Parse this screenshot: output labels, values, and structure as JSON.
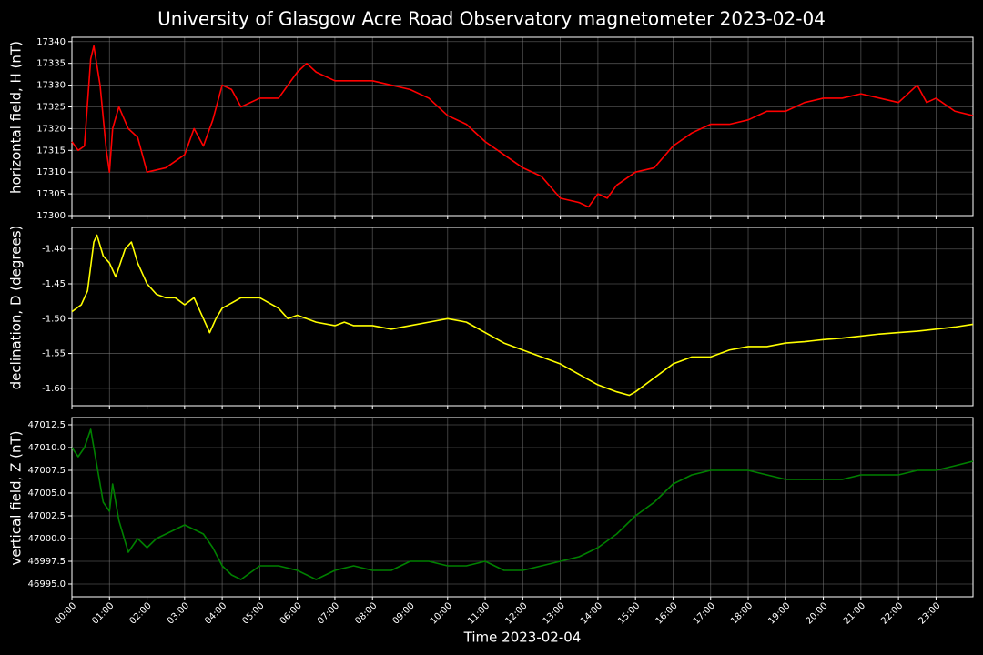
{
  "title": "University of Glasgow Acre Road Observatory magnetometer 2023-02-04",
  "chart_data": [
    {
      "type": "line",
      "ylabel": "horizontal field, H (nT)",
      "grid": true,
      "xlim": [
        "00:00",
        "23:59"
      ],
      "ylim": [
        17300,
        17341
      ],
      "yticks": [
        17300,
        17305,
        17310,
        17315,
        17320,
        17325,
        17330,
        17335,
        17340
      ],
      "x": [
        "00:00",
        "00:10",
        "00:20",
        "00:30",
        "00:35",
        "00:45",
        "00:55",
        "01:00",
        "01:05",
        "01:15",
        "01:30",
        "01:45",
        "02:00",
        "02:30",
        "03:00",
        "03:15",
        "03:30",
        "03:45",
        "04:00",
        "04:15",
        "04:30",
        "05:00",
        "05:30",
        "06:00",
        "06:15",
        "06:30",
        "07:00",
        "07:30",
        "08:00",
        "08:30",
        "09:00",
        "09:30",
        "10:00",
        "10:30",
        "11:00",
        "11:30",
        "12:00",
        "12:30",
        "13:00",
        "13:30",
        "13:45",
        "14:00",
        "14:15",
        "14:30",
        "15:00",
        "15:30",
        "16:00",
        "16:30",
        "17:00",
        "17:30",
        "18:00",
        "18:30",
        "19:00",
        "19:30",
        "20:00",
        "20:30",
        "21:00",
        "21:30",
        "22:00",
        "22:30",
        "22:45",
        "23:00",
        "23:30",
        "23:59"
      ],
      "series": [
        {
          "color": "#ff0000",
          "values": [
            17317,
            17315,
            17316,
            17336,
            17339,
            17330,
            17315,
            17310,
            17320,
            17325,
            17320,
            17318,
            17310,
            17311,
            17314,
            17320,
            17316,
            17322,
            17330,
            17329,
            17325,
            17327,
            17327,
            17333,
            17335,
            17333,
            17331,
            17331,
            17331,
            17330,
            17329,
            17327,
            17323,
            17321,
            17317,
            17314,
            17311,
            17309,
            17304,
            17303,
            17302,
            17305,
            17304,
            17307,
            17310,
            17311,
            17316,
            17319,
            17321,
            17321,
            17322,
            17324,
            17324,
            17326,
            17327,
            17327,
            17328,
            17327,
            17326,
            17330,
            17326,
            17327,
            17324,
            17323
          ]
        }
      ]
    },
    {
      "type": "line",
      "ylabel": "declination, D (degrees)",
      "grid": true,
      "xlim": [
        "00:00",
        "23:59"
      ],
      "ylim": [
        -1.625,
        -1.369
      ],
      "yticks": [
        {
          "value": -1.6,
          "label": "-1.60"
        },
        -1.55,
        {
          "value": -1.5,
          "label": "-1.50"
        },
        -1.45,
        {
          "value": -1.4,
          "label": "-1.40"
        }
      ],
      "x": [
        "00:00",
        "00:15",
        "00:25",
        "00:35",
        "00:40",
        "00:50",
        "01:00",
        "01:10",
        "01:25",
        "01:35",
        "01:45",
        "02:00",
        "02:15",
        "02:30",
        "02:45",
        "03:00",
        "03:15",
        "03:30",
        "03:40",
        "03:50",
        "04:00",
        "04:30",
        "05:00",
        "05:30",
        "05:45",
        "06:00",
        "06:30",
        "07:00",
        "07:15",
        "07:30",
        "08:00",
        "08:30",
        "09:00",
        "09:30",
        "10:00",
        "10:30",
        "11:00",
        "11:30",
        "12:00",
        "12:30",
        "13:00",
        "13:30",
        "14:00",
        "14:30",
        "14:50",
        "15:00",
        "15:30",
        "16:00",
        "16:30",
        "17:00",
        "17:30",
        "18:00",
        "18:30",
        "19:00",
        "19:30",
        "20:00",
        "20:30",
        "21:00",
        "21:30",
        "22:00",
        "22:30",
        "23:00",
        "23:30",
        "23:59"
      ],
      "series": [
        {
          "color": "#ffff00",
          "values": [
            -1.49,
            -1.48,
            -1.46,
            -1.39,
            -1.38,
            -1.41,
            -1.42,
            -1.44,
            -1.4,
            -1.39,
            -1.42,
            -1.45,
            -1.465,
            -1.47,
            -1.47,
            -1.48,
            -1.47,
            -1.5,
            -1.52,
            -1.5,
            -1.485,
            -1.47,
            -1.47,
            -1.485,
            -1.5,
            -1.495,
            -1.505,
            -1.51,
            -1.505,
            -1.51,
            -1.51,
            -1.515,
            -1.51,
            -1.505,
            -1.5,
            -1.505,
            -1.52,
            -1.535,
            -1.545,
            -1.555,
            -1.565,
            -1.58,
            -1.595,
            -1.605,
            -1.61,
            -1.605,
            -1.585,
            -1.565,
            -1.555,
            -1.555,
            -1.545,
            -1.54,
            -1.54,
            -1.535,
            -1.533,
            -1.53,
            -1.528,
            -1.525,
            -1.522,
            -1.52,
            -1.518,
            -1.515,
            -1.512,
            -1.508
          ]
        }
      ]
    },
    {
      "type": "line",
      "ylabel": "vertical field, Z (nT)",
      "xlabel": "Time 2023-02-04",
      "grid": true,
      "xlim": [
        "00:00",
        "23:59"
      ],
      "ylim": [
        46993.6,
        47013.3
      ],
      "xticks": [
        "00:00",
        "01:00",
        "02:00",
        "03:00",
        "04:00",
        "05:00",
        "06:00",
        "07:00",
        "08:00",
        "09:00",
        "10:00",
        "11:00",
        "12:00",
        "13:00",
        "14:00",
        "15:00",
        "16:00",
        "17:00",
        "18:00",
        "19:00",
        "20:00",
        "21:00",
        "22:00",
        "23:00"
      ],
      "yticks": [
        {
          "value": 46995,
          "label": "46995.0"
        },
        46997.5,
        {
          "value": 47000,
          "label": "47000.0"
        },
        47002.5,
        {
          "value": 47005,
          "label": "47005.0"
        },
        47007.5,
        {
          "value": 47010,
          "label": "47010.0"
        },
        47012.5
      ],
      "x": [
        "00:00",
        "00:10",
        "00:20",
        "00:30",
        "00:40",
        "00:50",
        "01:00",
        "01:05",
        "01:15",
        "01:30",
        "01:45",
        "02:00",
        "02:15",
        "02:30",
        "03:00",
        "03:30",
        "03:45",
        "04:00",
        "04:15",
        "04:30",
        "05:00",
        "05:30",
        "06:00",
        "06:30",
        "07:00",
        "07:30",
        "08:00",
        "08:30",
        "09:00",
        "09:30",
        "10:00",
        "10:30",
        "11:00",
        "11:30",
        "12:00",
        "12:30",
        "13:00",
        "13:30",
        "14:00",
        "14:30",
        "15:00",
        "15:30",
        "16:00",
        "16:30",
        "17:00",
        "17:30",
        "18:00",
        "18:30",
        "19:00",
        "19:30",
        "20:00",
        "20:30",
        "21:00",
        "21:30",
        "22:00",
        "22:30",
        "23:00",
        "23:30",
        "23:59"
      ],
      "series": [
        {
          "color": "#008000",
          "values": [
            47010,
            47009,
            47010,
            47012,
            47008,
            47004,
            47003,
            47006,
            47002,
            46998.5,
            47000,
            46999,
            47000,
            47000.5,
            47001.5,
            47000.5,
            46999,
            46997,
            46996,
            46995.5,
            46997,
            46997,
            46996.5,
            46995.5,
            46996.5,
            46997,
            46996.5,
            46996.5,
            46997.5,
            46997.5,
            46997,
            46997,
            46997.5,
            46996.5,
            46996.5,
            46997,
            46997.5,
            46998,
            46999,
            47000.5,
            47002.5,
            47004,
            47006,
            47007,
            47007.5,
            47007.5,
            47007.5,
            47007,
            47006.5,
            47006.5,
            47006.5,
            47006.5,
            47007,
            47007,
            47007,
            47007.5,
            47007.5,
            47008,
            47008.5
          ]
        }
      ]
    }
  ]
}
